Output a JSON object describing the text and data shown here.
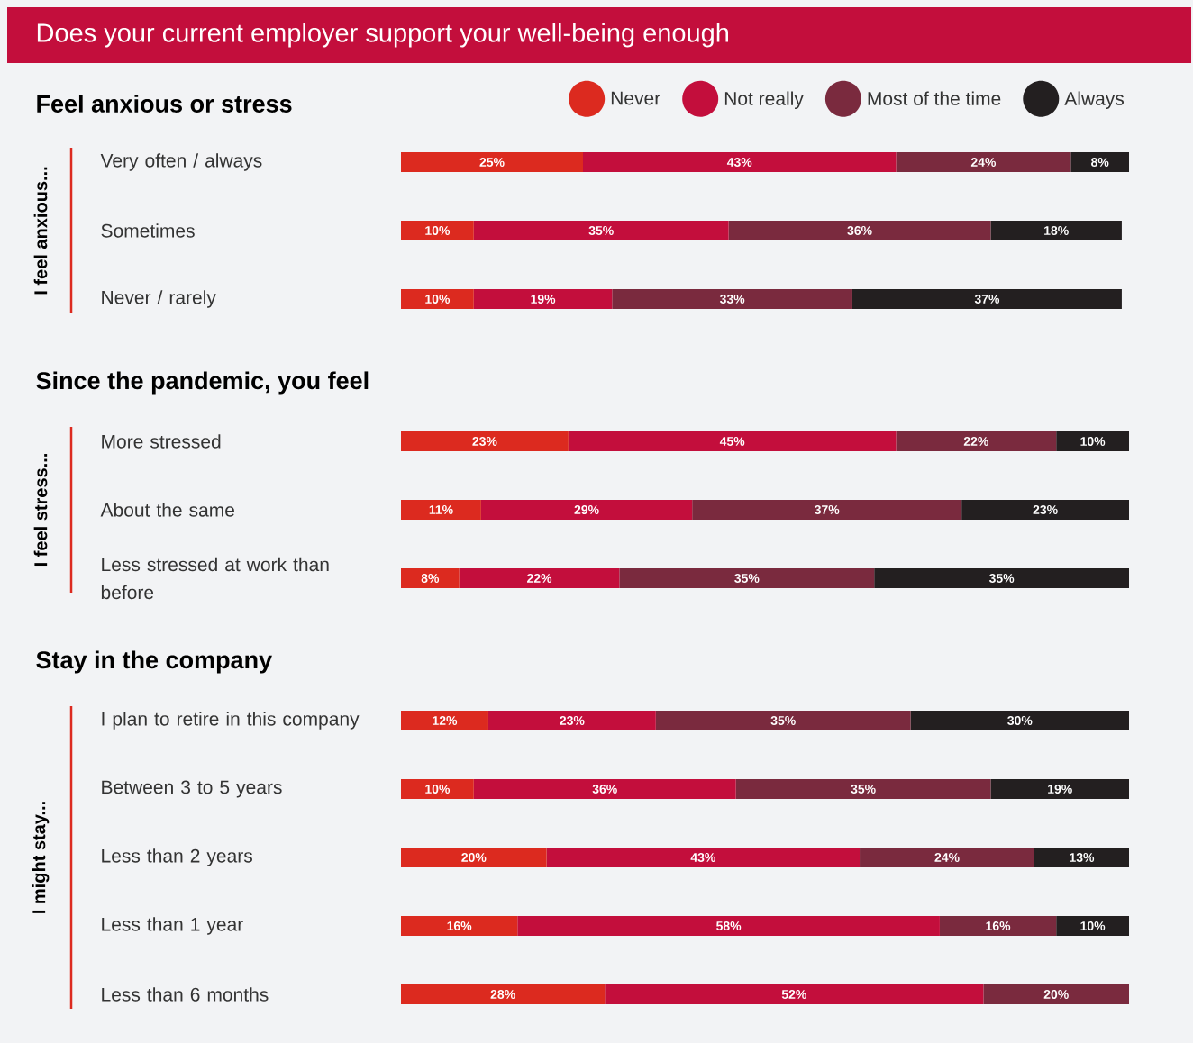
{
  "chart_data": [
    {
      "type": "bar",
      "orientation": "horizontal",
      "stacked": true,
      "title": "Does your current employer support your well-being enough",
      "subtitle": "Feel anxious or stress",
      "ylabel": "I feel anxious...",
      "legend": "top right",
      "categories": [
        "Very often / always",
        "Sometimes",
        "Never / rarely"
      ],
      "series": [
        {
          "name": "Never",
          "color": "#dc2a1f",
          "values": [
            25,
            10,
            10
          ],
          "value_labels": [
            "25%",
            "10%",
            "10%"
          ]
        },
        {
          "name": "Not really",
          "color": "#c30e3c",
          "values": [
            43,
            35,
            19
          ],
          "value_labels": [
            "43%",
            "35%",
            "19%"
          ]
        },
        {
          "name": "Most of the time",
          "color": "#7a2a3e",
          "values": [
            24,
            36,
            33
          ],
          "value_labels": [
            "24%",
            "36%",
            "33%"
          ]
        },
        {
          "name": "Always",
          "color": "#231f20",
          "values": [
            8,
            18,
            37
          ],
          "value_labels": [
            "8%",
            "18%",
            "37%"
          ]
        }
      ]
    },
    {
      "type": "bar",
      "orientation": "horizontal",
      "stacked": true,
      "title": "Since the pandemic, you feel",
      "ylabel": "I feel stress...",
      "categories": [
        "More stressed",
        "About the same",
        "Less stressed at work than before"
      ],
      "series": [
        {
          "color": "#dc2a1f",
          "values": [
            23,
            11,
            8
          ],
          "value_labels": [
            "23%",
            "11%",
            "8%"
          ]
        },
        {
          "color": "#c30e3c",
          "values": [
            45,
            29,
            22
          ],
          "value_labels": [
            "45%",
            "29%",
            "22%"
          ]
        },
        {
          "color": "#7a2a3e",
          "values": [
            22,
            37,
            35
          ],
          "value_labels": [
            "22%",
            "37%",
            "35%"
          ]
        },
        {
          "color": "#231f20",
          "values": [
            10,
            23,
            35
          ],
          "value_labels": [
            "10%",
            "23%",
            "35%"
          ]
        }
      ]
    },
    {
      "type": "bar",
      "orientation": "horizontal",
      "stacked": true,
      "title": "Stay in the company",
      "ylabel": "I might stay...",
      "categories": [
        "I plan to retire in this company",
        "Between 3 to 5 years",
        "Less than 2 years",
        "Less than 1 year",
        "Less than 6 months"
      ],
      "series": [
        {
          "color": "#dc2a1f",
          "values": [
            12,
            10,
            20,
            16,
            28
          ],
          "value_labels": [
            "12%",
            "10%",
            "20%",
            "16%",
            "28%"
          ]
        },
        {
          "color": "#c30e3c",
          "values": [
            23,
            36,
            43,
            58,
            52
          ],
          "value_labels": [
            "23%",
            "36%",
            "43%",
            "58%",
            "52%"
          ]
        },
        {
          "color": "#7a2a3e",
          "values": [
            35,
            35,
            24,
            16,
            20
          ],
          "value_labels": [
            "35%",
            "35%",
            "24%",
            "16%",
            "20%"
          ]
        },
        {
          "color": "#231f20",
          "values": [
            30,
            19,
            13,
            10,
            null
          ],
          "value_labels": [
            "30%",
            "19%",
            "13%",
            "10%",
            null
          ]
        }
      ]
    }
  ]
}
